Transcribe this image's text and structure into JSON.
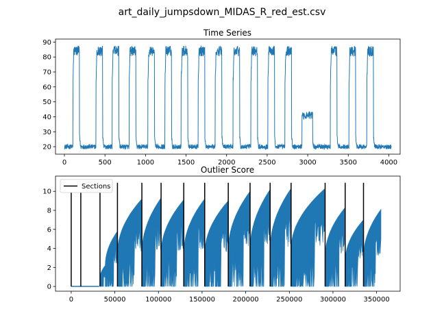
{
  "figure": {
    "suptitle": "art_daily_jumpsdown_MIDAS_R_red_est.csv"
  },
  "chart_data": [
    {
      "type": "line",
      "title": "Time Series",
      "xlabel": "",
      "ylabel": "",
      "xlim": [
        -110,
        4140
      ],
      "ylim": [
        15,
        92
      ],
      "xticks": [
        0,
        500,
        1000,
        1500,
        2000,
        2500,
        3000,
        3500,
        4000
      ],
      "yticks": [
        20,
        30,
        40,
        50,
        60,
        70,
        80,
        90
      ],
      "grid": false,
      "color": "#1f77b4",
      "series": [
        {
          "x_range": [
            0,
            4031
          ],
          "baseline": 20,
          "high_segments": [
            {
              "start": 105,
              "end": 185,
              "level": 84
            },
            {
              "start": 390,
              "end": 470,
              "level": 84
            },
            {
              "start": 590,
              "end": 670,
              "level": 84
            },
            {
              "start": 800,
              "end": 880,
              "level": 84
            },
            {
              "start": 1030,
              "end": 1110,
              "level": 84
            },
            {
              "start": 1240,
              "end": 1320,
              "level": 84
            },
            {
              "start": 1440,
              "end": 1520,
              "level": 84
            },
            {
              "start": 1650,
              "end": 1730,
              "level": 84
            },
            {
              "start": 1860,
              "end": 1940,
              "level": 84
            },
            {
              "start": 2080,
              "end": 2160,
              "level": 84
            },
            {
              "start": 2300,
              "end": 2380,
              "level": 84
            },
            {
              "start": 2510,
              "end": 2590,
              "level": 84
            },
            {
              "start": 2720,
              "end": 2800,
              "level": 84
            },
            {
              "start": 2930,
              "end": 3060,
              "level": 41
            },
            {
              "start": 3280,
              "end": 3360,
              "level": 84
            },
            {
              "start": 3510,
              "end": 3590,
              "level": 84
            },
            {
              "start": 3730,
              "end": 3810,
              "level": 84
            }
          ]
        }
      ]
    },
    {
      "type": "line",
      "title": "Outlier Score",
      "xlabel": "",
      "ylabel": "",
      "xlim": [
        -18000,
        377000
      ],
      "ylim": [
        -0.5,
        11.6
      ],
      "xticks": [
        0,
        50000,
        100000,
        150000,
        200000,
        250000,
        300000,
        350000
      ],
      "yticks": [
        0,
        2,
        4,
        6,
        8,
        10
      ],
      "grid": false,
      "legend": {
        "position": "top-left",
        "entries": [
          "Sections"
        ]
      },
      "color": "#1f77b4",
      "section_lines": [
        0,
        11000,
        33000,
        53000,
        81000,
        103000,
        129000,
        153000,
        180000,
        205000,
        228000,
        252000,
        291000,
        314000,
        335000
      ],
      "section_top": 10.9,
      "score_segments": [
        {
          "start": 0,
          "end": 32000,
          "floor": 0,
          "top": 0
        },
        {
          "start": 33000,
          "end": 39000,
          "floor": 0,
          "top": 2.2
        },
        {
          "start": 39000,
          "end": 53000,
          "floor": 0,
          "top": 5.8
        },
        {
          "start": 53000,
          "end": 81000,
          "floor": 0,
          "top": 9.2
        },
        {
          "start": 81000,
          "end": 103000,
          "floor": 0,
          "top": 9.3
        },
        {
          "start": 103000,
          "end": 129000,
          "floor": 0,
          "top": 9.1
        },
        {
          "start": 129000,
          "end": 153000,
          "floor": 0,
          "top": 9.2
        },
        {
          "start": 153000,
          "end": 180000,
          "floor": 0,
          "top": 9.0
        },
        {
          "start": 180000,
          "end": 205000,
          "floor": 0,
          "top": 10.0
        },
        {
          "start": 205000,
          "end": 228000,
          "floor": 0,
          "top": 10.2
        },
        {
          "start": 228000,
          "end": 252000,
          "floor": 0,
          "top": 10.3
        },
        {
          "start": 252000,
          "end": 291000,
          "floor": 0,
          "top": 10.3
        },
        {
          "start": 291000,
          "end": 314000,
          "floor": 0,
          "top": 8.3
        },
        {
          "start": 314000,
          "end": 335000,
          "floor": 0,
          "top": 7.0
        },
        {
          "start": 335000,
          "end": 355000,
          "floor": 0,
          "top": 8.1
        }
      ]
    }
  ]
}
